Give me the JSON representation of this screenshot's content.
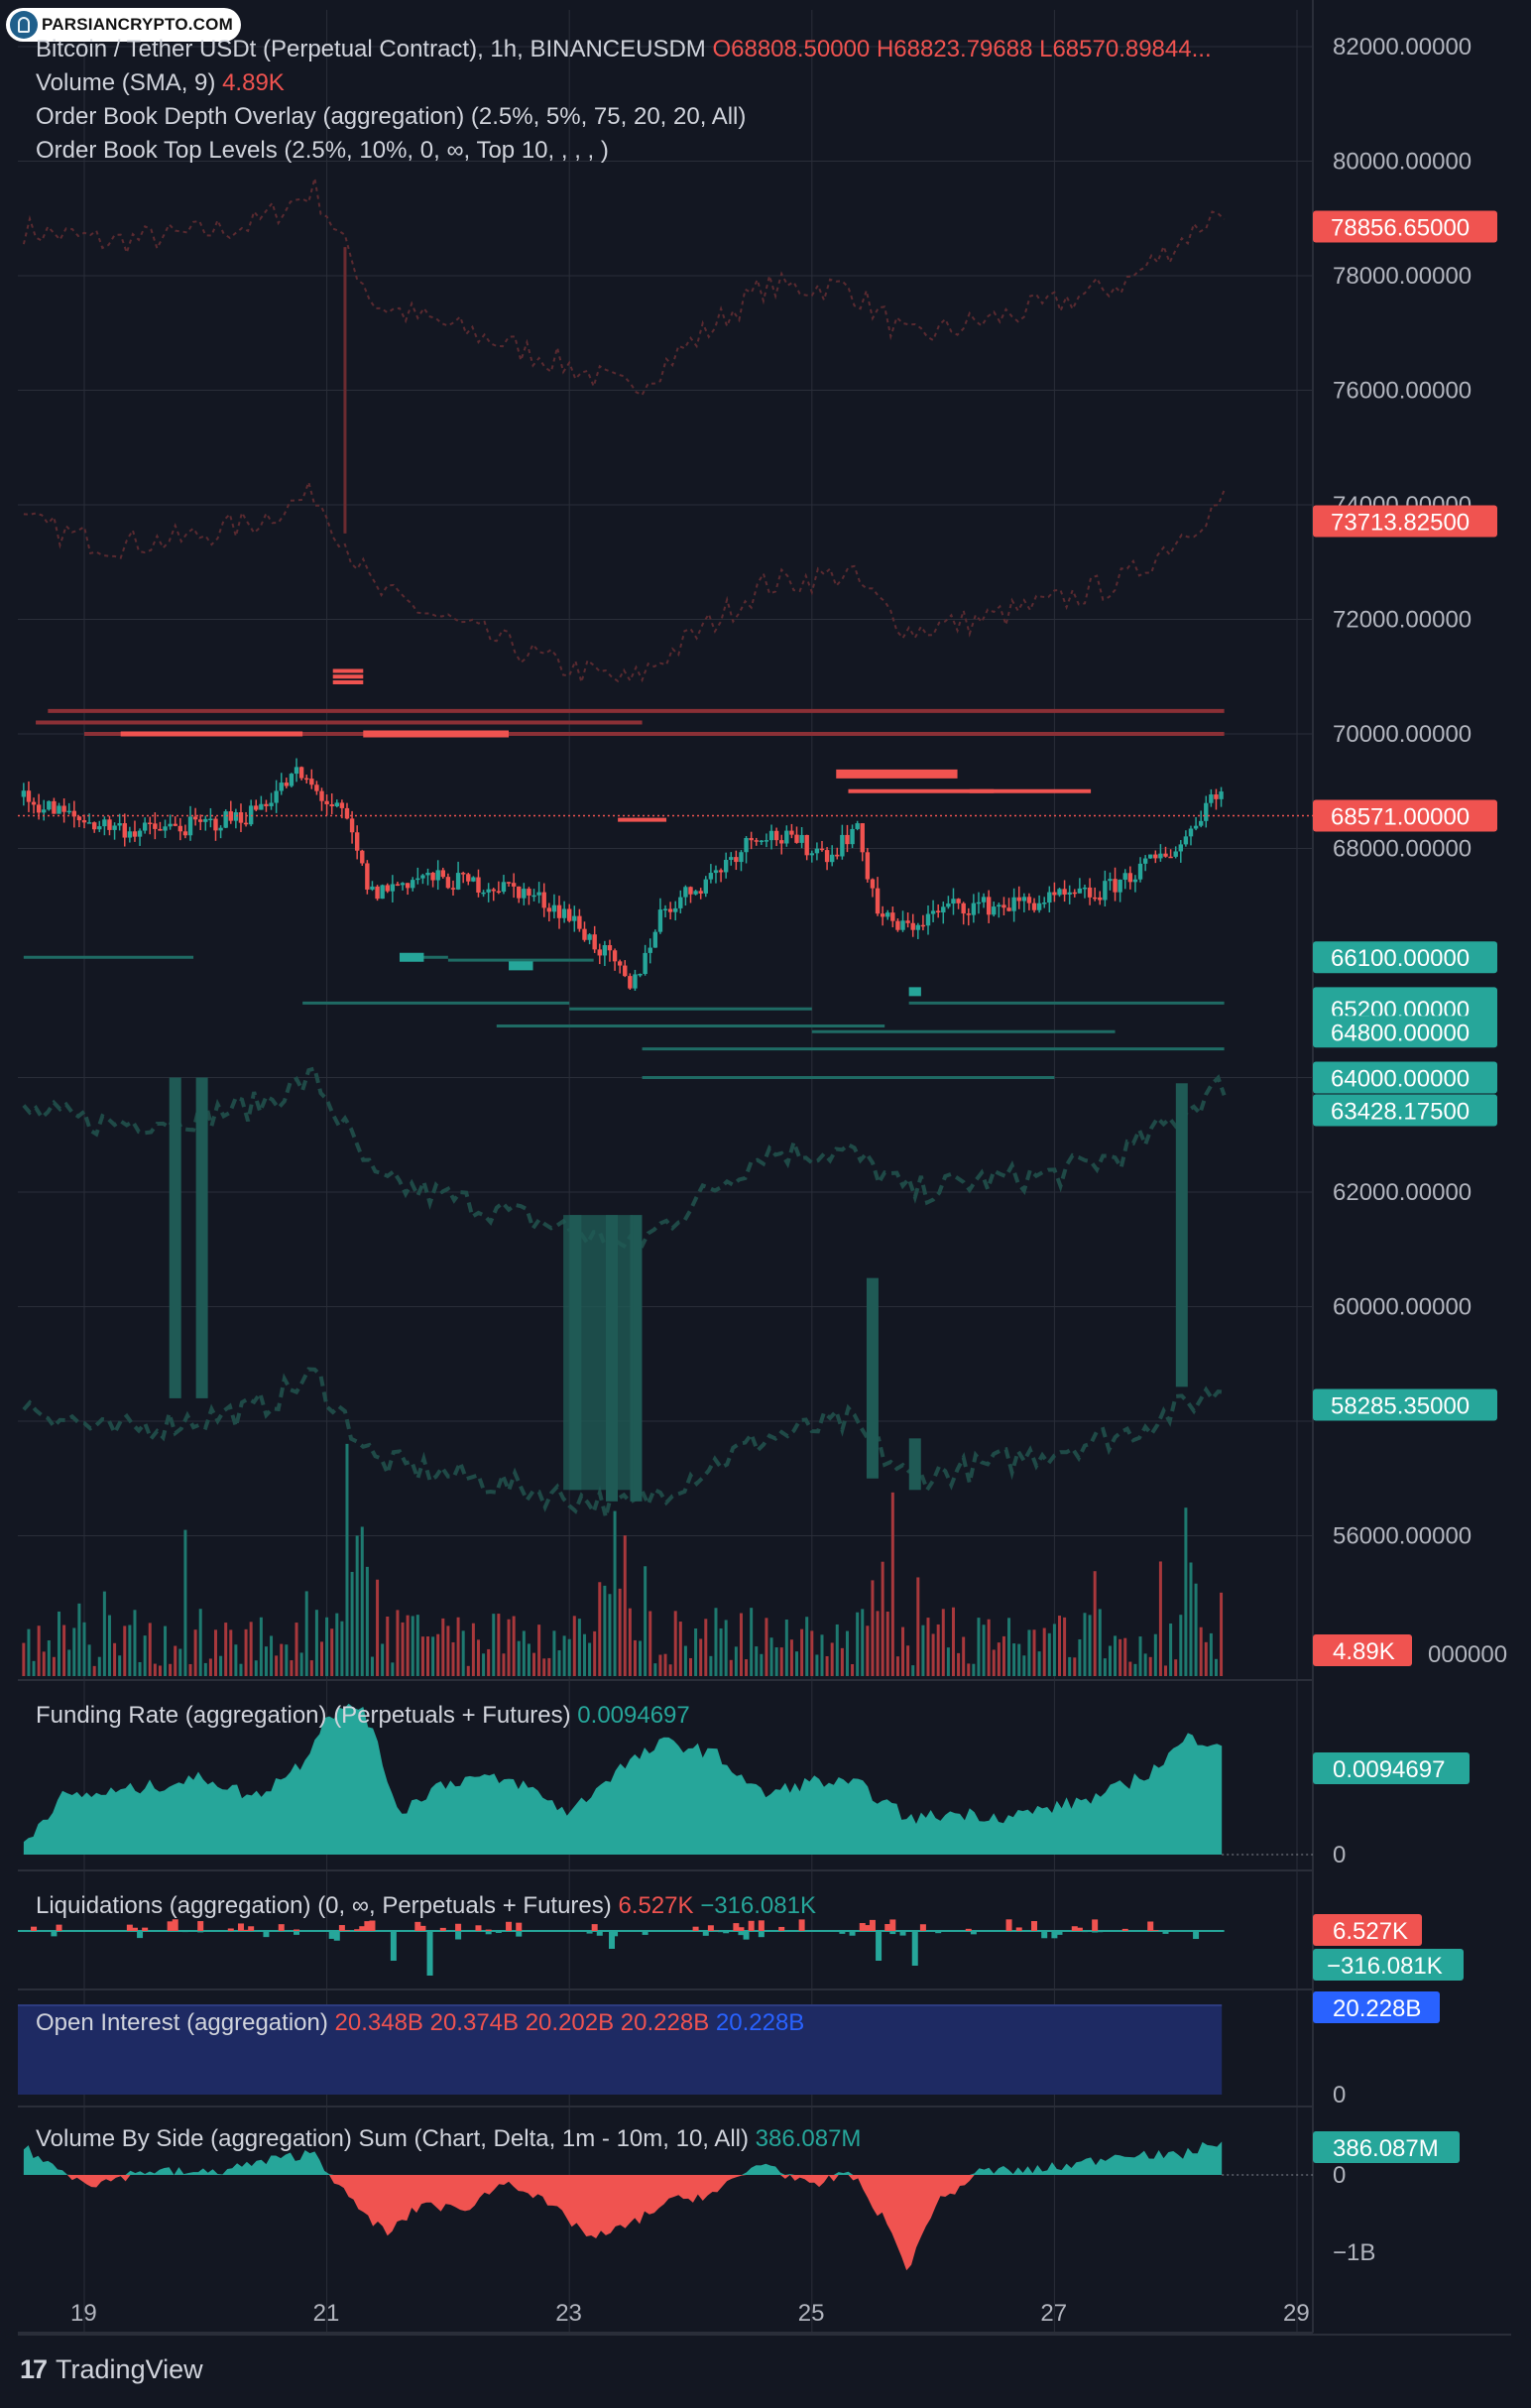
{
  "watermark": {
    "text": "PARSIANCRYPTO.COM"
  },
  "branding": {
    "text": "TradingView"
  },
  "colors": {
    "background": "#131722",
    "up": "#26a69a",
    "down": "#f05350",
    "blue": "#2962ff",
    "grid": "#2a2e39"
  },
  "legends": {
    "main": {
      "symbol": "Bitcoin / Tether USDt (Perpetual Contract), 1h, BINANCEUSDM",
      "open": "O68808.50000",
      "high": "H68823.79688",
      "low": "L68570.89844..."
    },
    "volume": {
      "label": "Volume (SMA, 9)",
      "value": "4.89K"
    },
    "depth": {
      "label": "Order Book Depth Overlay (aggregation) (2.5%, 5%, 75, 20, 20, All)"
    },
    "top_levels": {
      "label": "Order Book Top Levels (2.5%, 10%, 0, ∞, Top 10, , , , )"
    },
    "funding": {
      "label": "Funding Rate (aggregation) (Perpetuals + Futures)",
      "value": "0.0094697"
    },
    "liquidations": {
      "label": "Liquidations (aggregation) (0, ∞, Perpetuals + Futures)",
      "long": "6.527K",
      "short": "−316.081K"
    },
    "open_interest": {
      "label": "Open Interest (aggregation)",
      "v1": "20.348B",
      "v2": "20.374B",
      "v3": "20.202B",
      "v4": "20.228B",
      "v5": "20.228B"
    },
    "volume_by_side": {
      "label": "Volume By Side (aggregation) Sum (Chart, Delta, 1m - 10m, 10, All)",
      "value": "386.087M"
    }
  },
  "chart_data": [
    {
      "type": "candlestick",
      "title": "Bitcoin / Tether USDt (Perpetual Contract), 1h, BINANCEUSDM",
      "y_axis_ticks": [
        82000,
        80000,
        78000,
        76000,
        74000,
        72000,
        70000,
        68000,
        62000,
        60000,
        56000
      ],
      "y_axis_tick_labels": [
        "82000.00000",
        "80000.00000",
        "78000.00000",
        "76000.00000",
        "74000.00000",
        "72000.00000",
        "70000.00000",
        "68000.00000",
        "62000.00000",
        "60000.00000",
        "56000.00000"
      ],
      "ylim": [
        54000,
        82600
      ],
      "x_axis_ticks": [
        "19",
        "21",
        "23",
        "25",
        "27",
        "29"
      ],
      "x_day_range": [
        18.5,
        29.0
      ],
      "last_price": 68571,
      "price_labels": [
        {
          "text": "78856.65000",
          "value": 78856.65,
          "color": "#f05350"
        },
        {
          "text": "73713.82500",
          "value": 73713.825,
          "color": "#f05350"
        },
        {
          "text": "68571.00000",
          "value": 68571,
          "color": "#f05350"
        },
        {
          "text": "66100.00000",
          "value": 66100,
          "color": "#26a69a"
        },
        {
          "text": "65300.00000",
          "value": 65300,
          "color": "#26a69a"
        },
        {
          "text": "65200.00000",
          "value": 65200,
          "color": "#26a69a"
        },
        {
          "text": "64800.00000",
          "value": 64800,
          "color": "#26a69a"
        },
        {
          "text": "64000.00000",
          "value": 64000,
          "color": "#26a69a"
        },
        {
          "text": "63428.17500",
          "value": 63428.175,
          "color": "#26a69a"
        },
        {
          "text": "58285.35000",
          "value": 58285.35,
          "color": "#26a69a"
        }
      ],
      "close_path": {
        "days": [
          18.5,
          19.0,
          19.5,
          20.0,
          20.4,
          20.8,
          21.2,
          21.4,
          21.8,
          22.2,
          22.6,
          23.0,
          23.4,
          23.55,
          23.8,
          24.2,
          24.6,
          24.9,
          25.2,
          25.4,
          25.6,
          25.8,
          26.2,
          26.6,
          27.0,
          27.4,
          27.8,
          28.1,
          28.35
        ],
        "prices": [
          68900,
          68500,
          68300,
          68400,
          68600,
          69300,
          68500,
          67200,
          67500,
          67400,
          67300,
          66900,
          66000,
          65500,
          66900,
          67500,
          68300,
          68100,
          67900,
          68400,
          66800,
          66600,
          67000,
          67000,
          67100,
          67200,
          67700,
          68100,
          69000
        ]
      },
      "depth_bands": {
        "red_upper": [
          78800,
          78600,
          78700,
          78900,
          79500,
          77500,
          77000,
          76500,
          76000,
          77800,
          77800,
          76900,
          77200,
          77500,
          77900,
          79200
        ],
        "red_lower": [
          73700,
          73300,
          73400,
          73700,
          74200,
          72500,
          71800,
          71200,
          70900,
          72600,
          72800,
          71800,
          72000,
          72300,
          72700,
          74100
        ],
        "green_upper": [
          63400,
          63200,
          63300,
          63500,
          64000,
          62200,
          61800,
          61400,
          61000,
          62700,
          62700,
          62000,
          62200,
          62300,
          62700,
          63900
        ],
        "green_lower": [
          58300,
          57800,
          58000,
          58200,
          58800,
          57300,
          57000,
          56700,
          56500,
          57700,
          58000,
          57000,
          57200,
          57500,
          57800,
          58600
        ],
        "days": [
          18.5,
          19.2,
          19.8,
          20.4,
          20.9,
          21.4,
          22.2,
          22.9,
          23.5,
          24.6,
          25.3,
          25.8,
          26.4,
          27.0,
          27.6,
          28.4
        ]
      }
    },
    {
      "type": "bar",
      "title": "Volume (SMA, 9)",
      "last": "4.89K",
      "note": "hourly traded volume bars, green = up hour, red = down hour"
    },
    {
      "type": "area",
      "title": "Funding Rate (aggregation) (Perpetuals + Futures)",
      "y_tick_labels": [
        "0"
      ],
      "last": 0.0094697,
      "days": [
        18.5,
        18.8,
        19.2,
        19.6,
        20.0,
        20.4,
        20.8,
        21.0,
        21.3,
        21.6,
        21.9,
        22.2,
        22.6,
        23.0,
        23.4,
        23.8,
        24.2,
        24.6,
        25.0,
        25.4,
        25.8,
        26.2,
        26.6,
        27.0,
        27.4,
        27.8,
        28.1,
        28.4
      ],
      "values": [
        0.001,
        0.0048,
        0.0052,
        0.0058,
        0.0065,
        0.0048,
        0.0078,
        0.0118,
        0.0125,
        0.0035,
        0.0058,
        0.0065,
        0.006,
        0.0035,
        0.0072,
        0.0095,
        0.0085,
        0.005,
        0.0062,
        0.0058,
        0.003,
        0.0035,
        0.0032,
        0.004,
        0.005,
        0.007,
        0.0098,
        0.0094697
      ]
    },
    {
      "type": "bar",
      "title": "Liquidations (aggregation) (0, ∞, Perpetuals + Futures)",
      "last_long": "6.527K",
      "last_short": "−316.081K"
    },
    {
      "type": "area",
      "title": "Open Interest (aggregation)",
      "y_tick_labels": [
        "0"
      ],
      "last": "20.228B"
    },
    {
      "type": "area",
      "title": "Volume By Side (aggregation) Sum (Chart, Delta, 1m - 10m, 10, All)",
      "y_tick_labels": [
        "0",
        "−1B"
      ],
      "last": "386.087M",
      "days": [
        18.5,
        18.8,
        19.1,
        19.5,
        20.0,
        20.5,
        20.9,
        21.2,
        21.5,
        21.8,
        22.1,
        22.5,
        22.9,
        23.2,
        23.5,
        23.8,
        24.2,
        24.6,
        25.0,
        25.3,
        25.6,
        25.8,
        26.0,
        26.4,
        26.8,
        27.2,
        27.6,
        28.0,
        28.4
      ],
      "values": [
        0.3,
        0.05,
        -0.1,
        0.05,
        0.02,
        0.15,
        0.25,
        -0.3,
        -0.65,
        -0.3,
        -0.4,
        -0.05,
        -0.4,
        -0.7,
        -0.55,
        -0.3,
        -0.2,
        0.15,
        -0.15,
        0.05,
        -0.5,
        -1.05,
        -0.35,
        0.05,
        0.05,
        0.12,
        0.25,
        0.2,
        0.386
      ]
    }
  ]
}
